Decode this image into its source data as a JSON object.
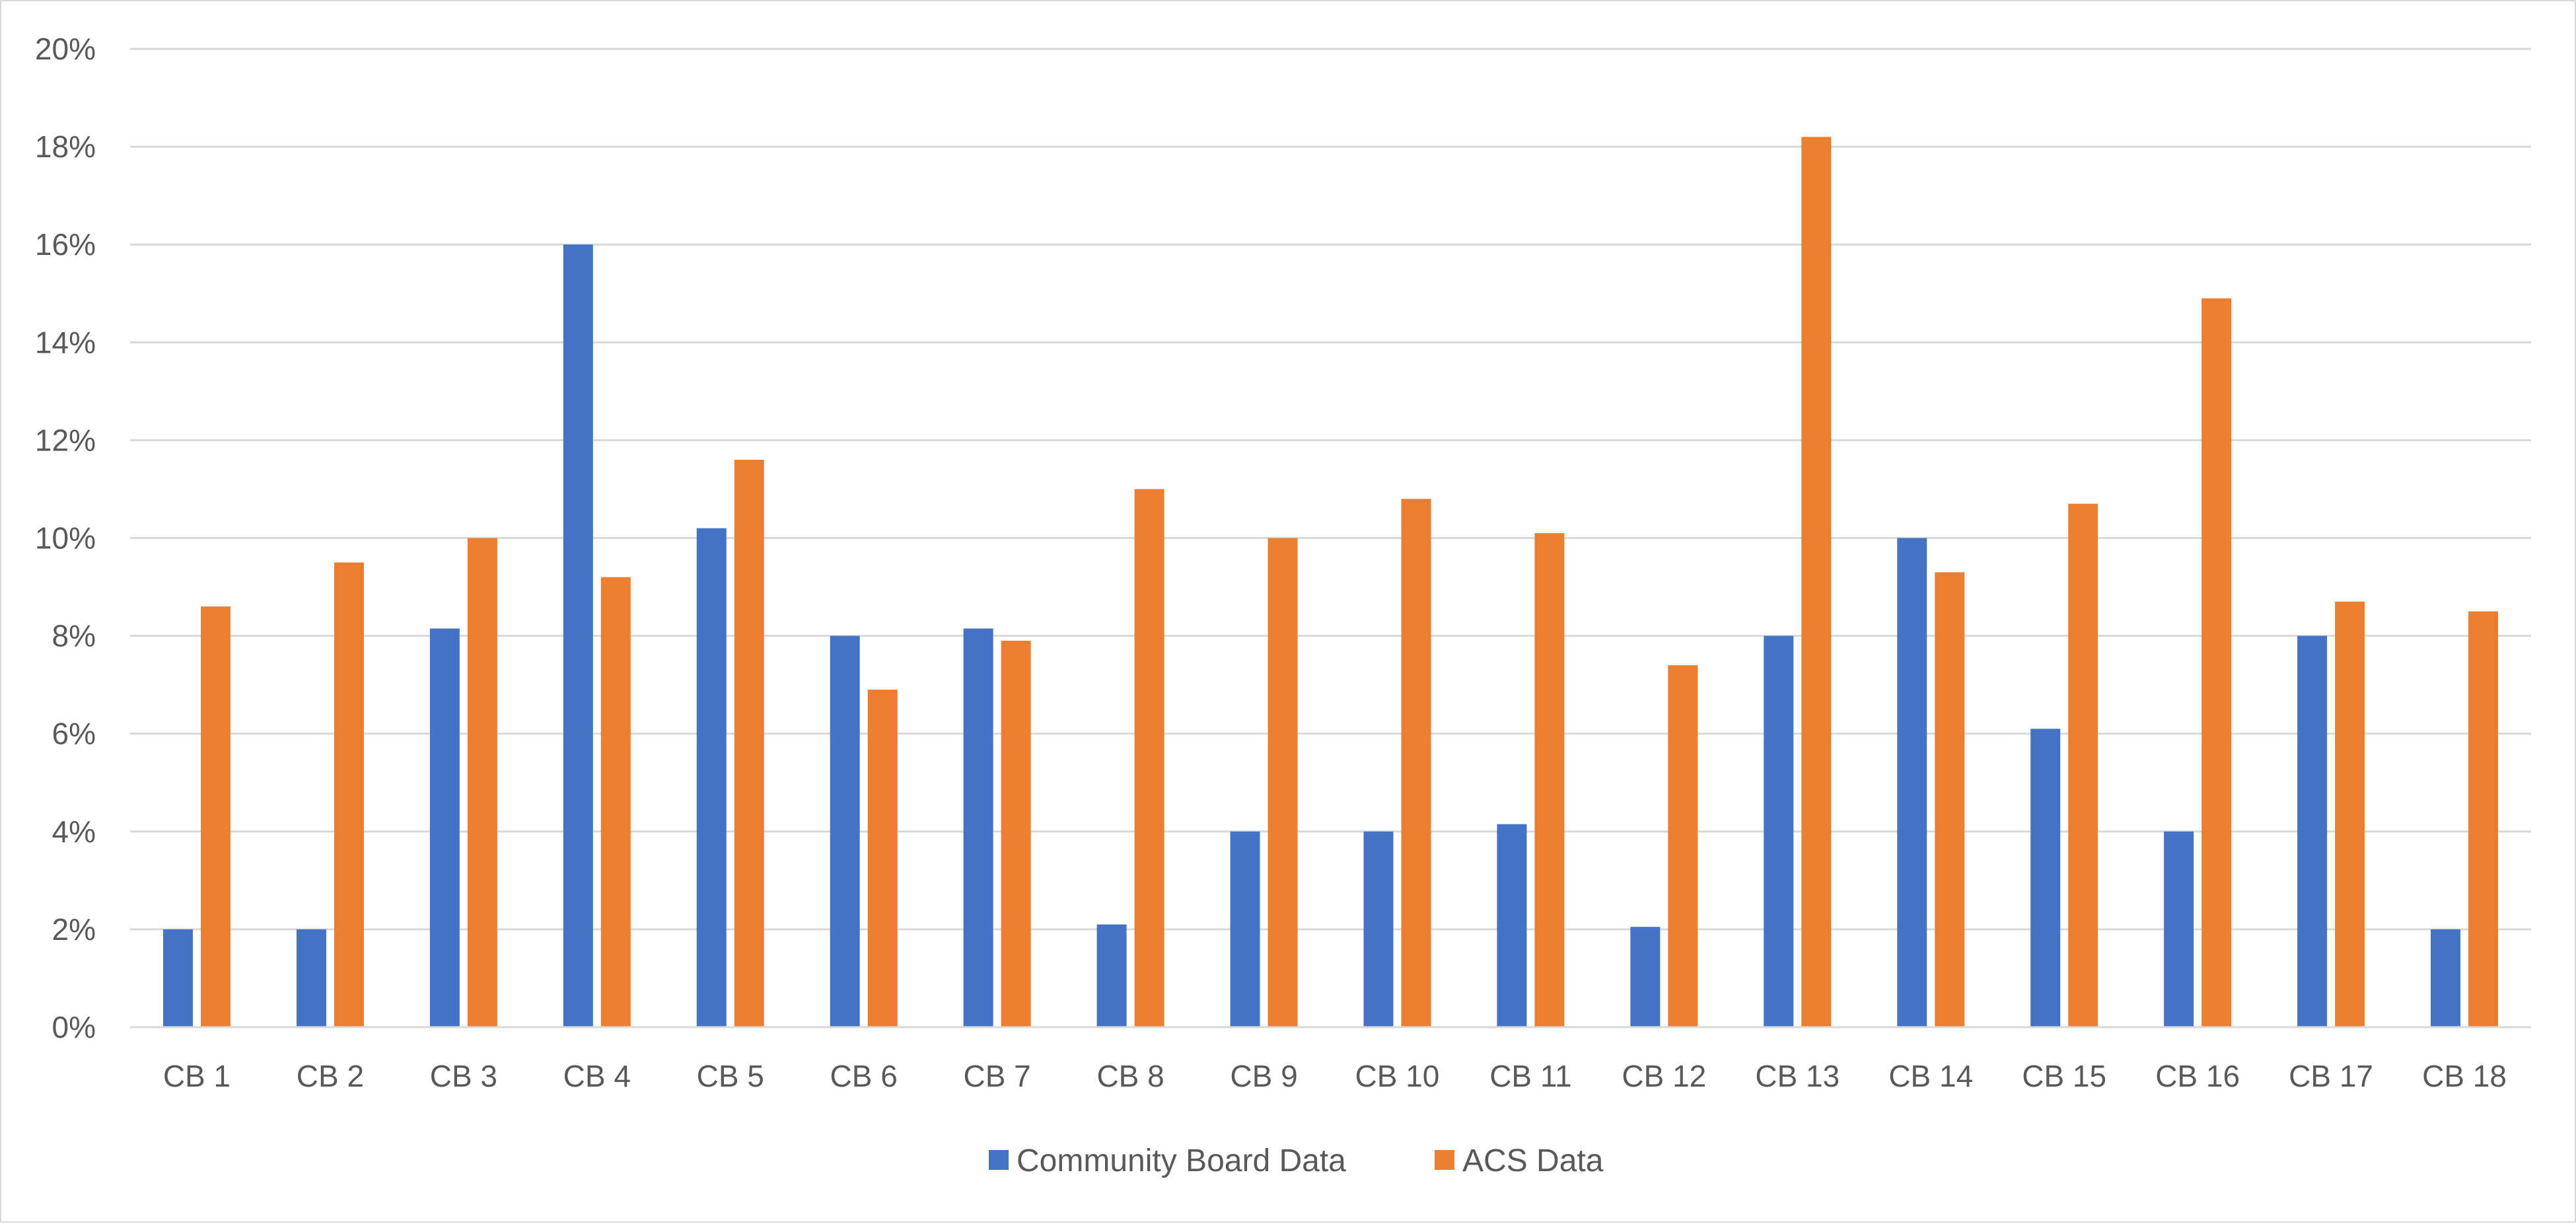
{
  "chart_data": {
    "type": "bar",
    "title": "",
    "xlabel": "",
    "ylabel": "",
    "categories": [
      "CB 1",
      "CB 2",
      "CB 3",
      "CB 4",
      "CB 5",
      "CB 6",
      "CB 7",
      "CB 8",
      "CB 9",
      "CB 10",
      "CB 11",
      "CB 12",
      "CB 13",
      "CB 14",
      "CB 15",
      "CB 16",
      "CB 17",
      "CB 18"
    ],
    "series": [
      {
        "name": "Community Board Data",
        "color": "#4472c4",
        "values": [
          2.0,
          2.0,
          8.15,
          16.0,
          10.2,
          8.0,
          8.15,
          2.1,
          4.0,
          4.0,
          4.15,
          2.05,
          8.0,
          10.0,
          6.1,
          4.0,
          8.0,
          2.0
        ]
      },
      {
        "name": "ACS Data",
        "color": "#ed7d31",
        "values": [
          8.6,
          9.5,
          10.0,
          9.2,
          11.6,
          6.9,
          7.9,
          11.0,
          10.0,
          10.8,
          10.1,
          7.4,
          18.2,
          9.3,
          10.7,
          14.9,
          8.7,
          8.5
        ]
      }
    ],
    "ylim": [
      0,
      20
    ],
    "yticks": [
      0,
      2,
      4,
      6,
      8,
      10,
      12,
      14,
      16,
      18,
      20
    ],
    "ytick_labels": [
      "0%",
      "2%",
      "4%",
      "6%",
      "8%",
      "10%",
      "12%",
      "14%",
      "16%",
      "18%",
      "20%"
    ],
    "grid": true,
    "legend_position": "bottom"
  }
}
